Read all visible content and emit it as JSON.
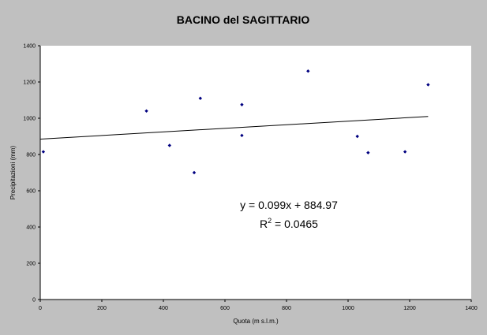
{
  "chart_data": {
    "type": "scatter",
    "title": "BACINO del SAGITTARIO",
    "xlabel": "Quota (m s.l.m.)",
    "ylabel": "Precipitazioni (mm)",
    "xlim": [
      0,
      1400
    ],
    "ylim": [
      0,
      1400
    ],
    "xticks": [
      "0",
      "200",
      "400",
      "600",
      "800",
      "1000",
      "1200",
      "1400"
    ],
    "yticks": [
      "0",
      "200",
      "400",
      "600",
      "800",
      "1000",
      "1200",
      "1400"
    ],
    "grid": false,
    "background_color": "#c0c0c0",
    "plot_background_color": "#ffffff",
    "marker_color": "#000080",
    "points": [
      {
        "x": 10,
        "y": 815
      },
      {
        "x": 345,
        "y": 1040
      },
      {
        "x": 420,
        "y": 850
      },
      {
        "x": 500,
        "y": 700
      },
      {
        "x": 520,
        "y": 1110
      },
      {
        "x": 655,
        "y": 1075
      },
      {
        "x": 655,
        "y": 905
      },
      {
        "x": 870,
        "y": 1260
      },
      {
        "x": 1030,
        "y": 900
      },
      {
        "x": 1065,
        "y": 810
      },
      {
        "x": 1185,
        "y": 815
      },
      {
        "x": 1260,
        "y": 1185
      }
    ],
    "trendline": {
      "type": "linear",
      "slope": 0.099,
      "intercept": 884.97,
      "x_range": [
        0,
        1260
      ],
      "equation_text": "y = 0.099x + 884.97",
      "r2_prefix": "R",
      "r2_sup": "2",
      "r2_suffix": " = 0.0465"
    }
  }
}
